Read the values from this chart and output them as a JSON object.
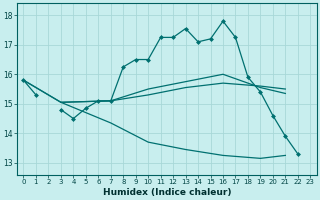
{
  "xlabel": "Humidex (Indice chaleur)",
  "bg_color": "#c8eeee",
  "grid_color": "#a8d8d8",
  "line_color": "#007070",
  "x_ticks": [
    0,
    1,
    2,
    3,
    4,
    5,
    6,
    7,
    8,
    9,
    10,
    11,
    12,
    13,
    14,
    15,
    16,
    17,
    18,
    19,
    20,
    21,
    22,
    23
  ],
  "y_ticks": [
    13,
    14,
    15,
    16,
    17,
    18
  ],
  "ylim": [
    12.6,
    18.4
  ],
  "xlim": [
    -0.5,
    23.5
  ],
  "jagged_line": [
    15.8,
    15.3,
    null,
    14.8,
    14.5,
    14.85,
    15.1,
    15.1,
    16.25,
    16.5,
    16.5,
    17.25,
    17.25,
    17.55,
    17.1,
    17.2,
    17.8,
    17.25,
    15.9,
    15.4,
    14.6,
    13.9,
    13.3,
    null
  ],
  "upper_line_x": [
    0,
    3,
    7,
    10,
    13,
    16,
    19,
    21
  ],
  "upper_line_y": [
    15.8,
    15.05,
    15.1,
    15.5,
    15.75,
    16.0,
    15.55,
    15.35
  ],
  "mid_line_x": [
    3,
    7,
    10,
    13,
    16,
    19,
    21
  ],
  "mid_line_y": [
    15.05,
    15.1,
    15.3,
    15.55,
    15.7,
    15.6,
    15.5
  ],
  "lower_line_x": [
    0,
    3,
    7,
    10,
    13,
    16,
    19,
    21
  ],
  "lower_line_y": [
    15.8,
    15.05,
    14.35,
    13.7,
    13.45,
    13.25,
    13.15,
    13.25
  ]
}
